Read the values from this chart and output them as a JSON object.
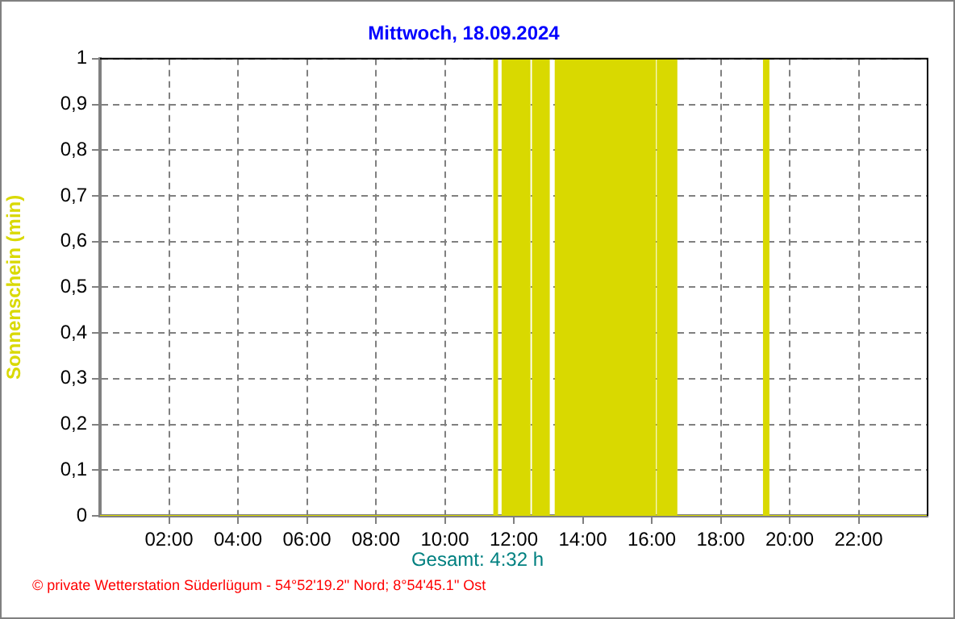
{
  "chart_data": {
    "type": "area",
    "title": "Mittwoch, 18.09.2024",
    "ylabel": "Sonnenschein (min)",
    "annotations": [
      "Gesamt: 4:32 h",
      "© private Wetterstation Süderlügum - 54°52'19.2\" Nord; 8°54'45.1\" Ost"
    ],
    "x": [
      0,
      11.43,
      11.43,
      11.52,
      11.52,
      11.67,
      11.67,
      12.46,
      12.46,
      12.55,
      12.55,
      13.02,
      13.02,
      13.21,
      13.21,
      16.1,
      16.1,
      16.17,
      16.17,
      16.22,
      16.22,
      16.25,
      16.25,
      16.72,
      16.72,
      19.25,
      19.25,
      19.39,
      19.39,
      24
    ],
    "series": [
      {
        "color": "#d9d900",
        "values": [
          0,
          0,
          1,
          1,
          0,
          0,
          1,
          1,
          0,
          0,
          1,
          1,
          0,
          0,
          1,
          1,
          0,
          0,
          1,
          1,
          0,
          0,
          1,
          1,
          0,
          0,
          1,
          1,
          0,
          0
        ]
      }
    ],
    "xlim": [
      0,
      24
    ],
    "xticks": [
      {
        "value": 2,
        "label": "02:00"
      },
      {
        "value": 4,
        "label": "04:00"
      },
      {
        "value": 6,
        "label": "06:00"
      },
      {
        "value": 8,
        "label": "08:00"
      },
      {
        "value": 10,
        "label": "10:00"
      },
      {
        "value": 12,
        "label": "12:00"
      },
      {
        "value": 14,
        "label": "14:00"
      },
      {
        "value": 16,
        "label": "16:00"
      },
      {
        "value": 18,
        "label": "18:00"
      },
      {
        "value": 20,
        "label": "20:00"
      },
      {
        "value": 22,
        "label": "22:00"
      }
    ],
    "ylim": [
      0,
      1
    ],
    "yticks": [
      0,
      {
        "value": 0.1,
        "label": "0,1"
      },
      {
        "value": 0.2,
        "label": "0,2"
      },
      {
        "value": 0.3,
        "label": "0,3"
      },
      {
        "value": 0.4,
        "label": "0,4"
      },
      {
        "value": 0.5,
        "label": "0,5"
      },
      {
        "value": 0.6,
        "label": "0,6"
      },
      {
        "value": 0.7,
        "label": "0,7"
      },
      {
        "value": 0.8,
        "label": "0,8"
      },
      {
        "value": 0.9,
        "label": "0,9"
      },
      1
    ],
    "grid": true
  }
}
